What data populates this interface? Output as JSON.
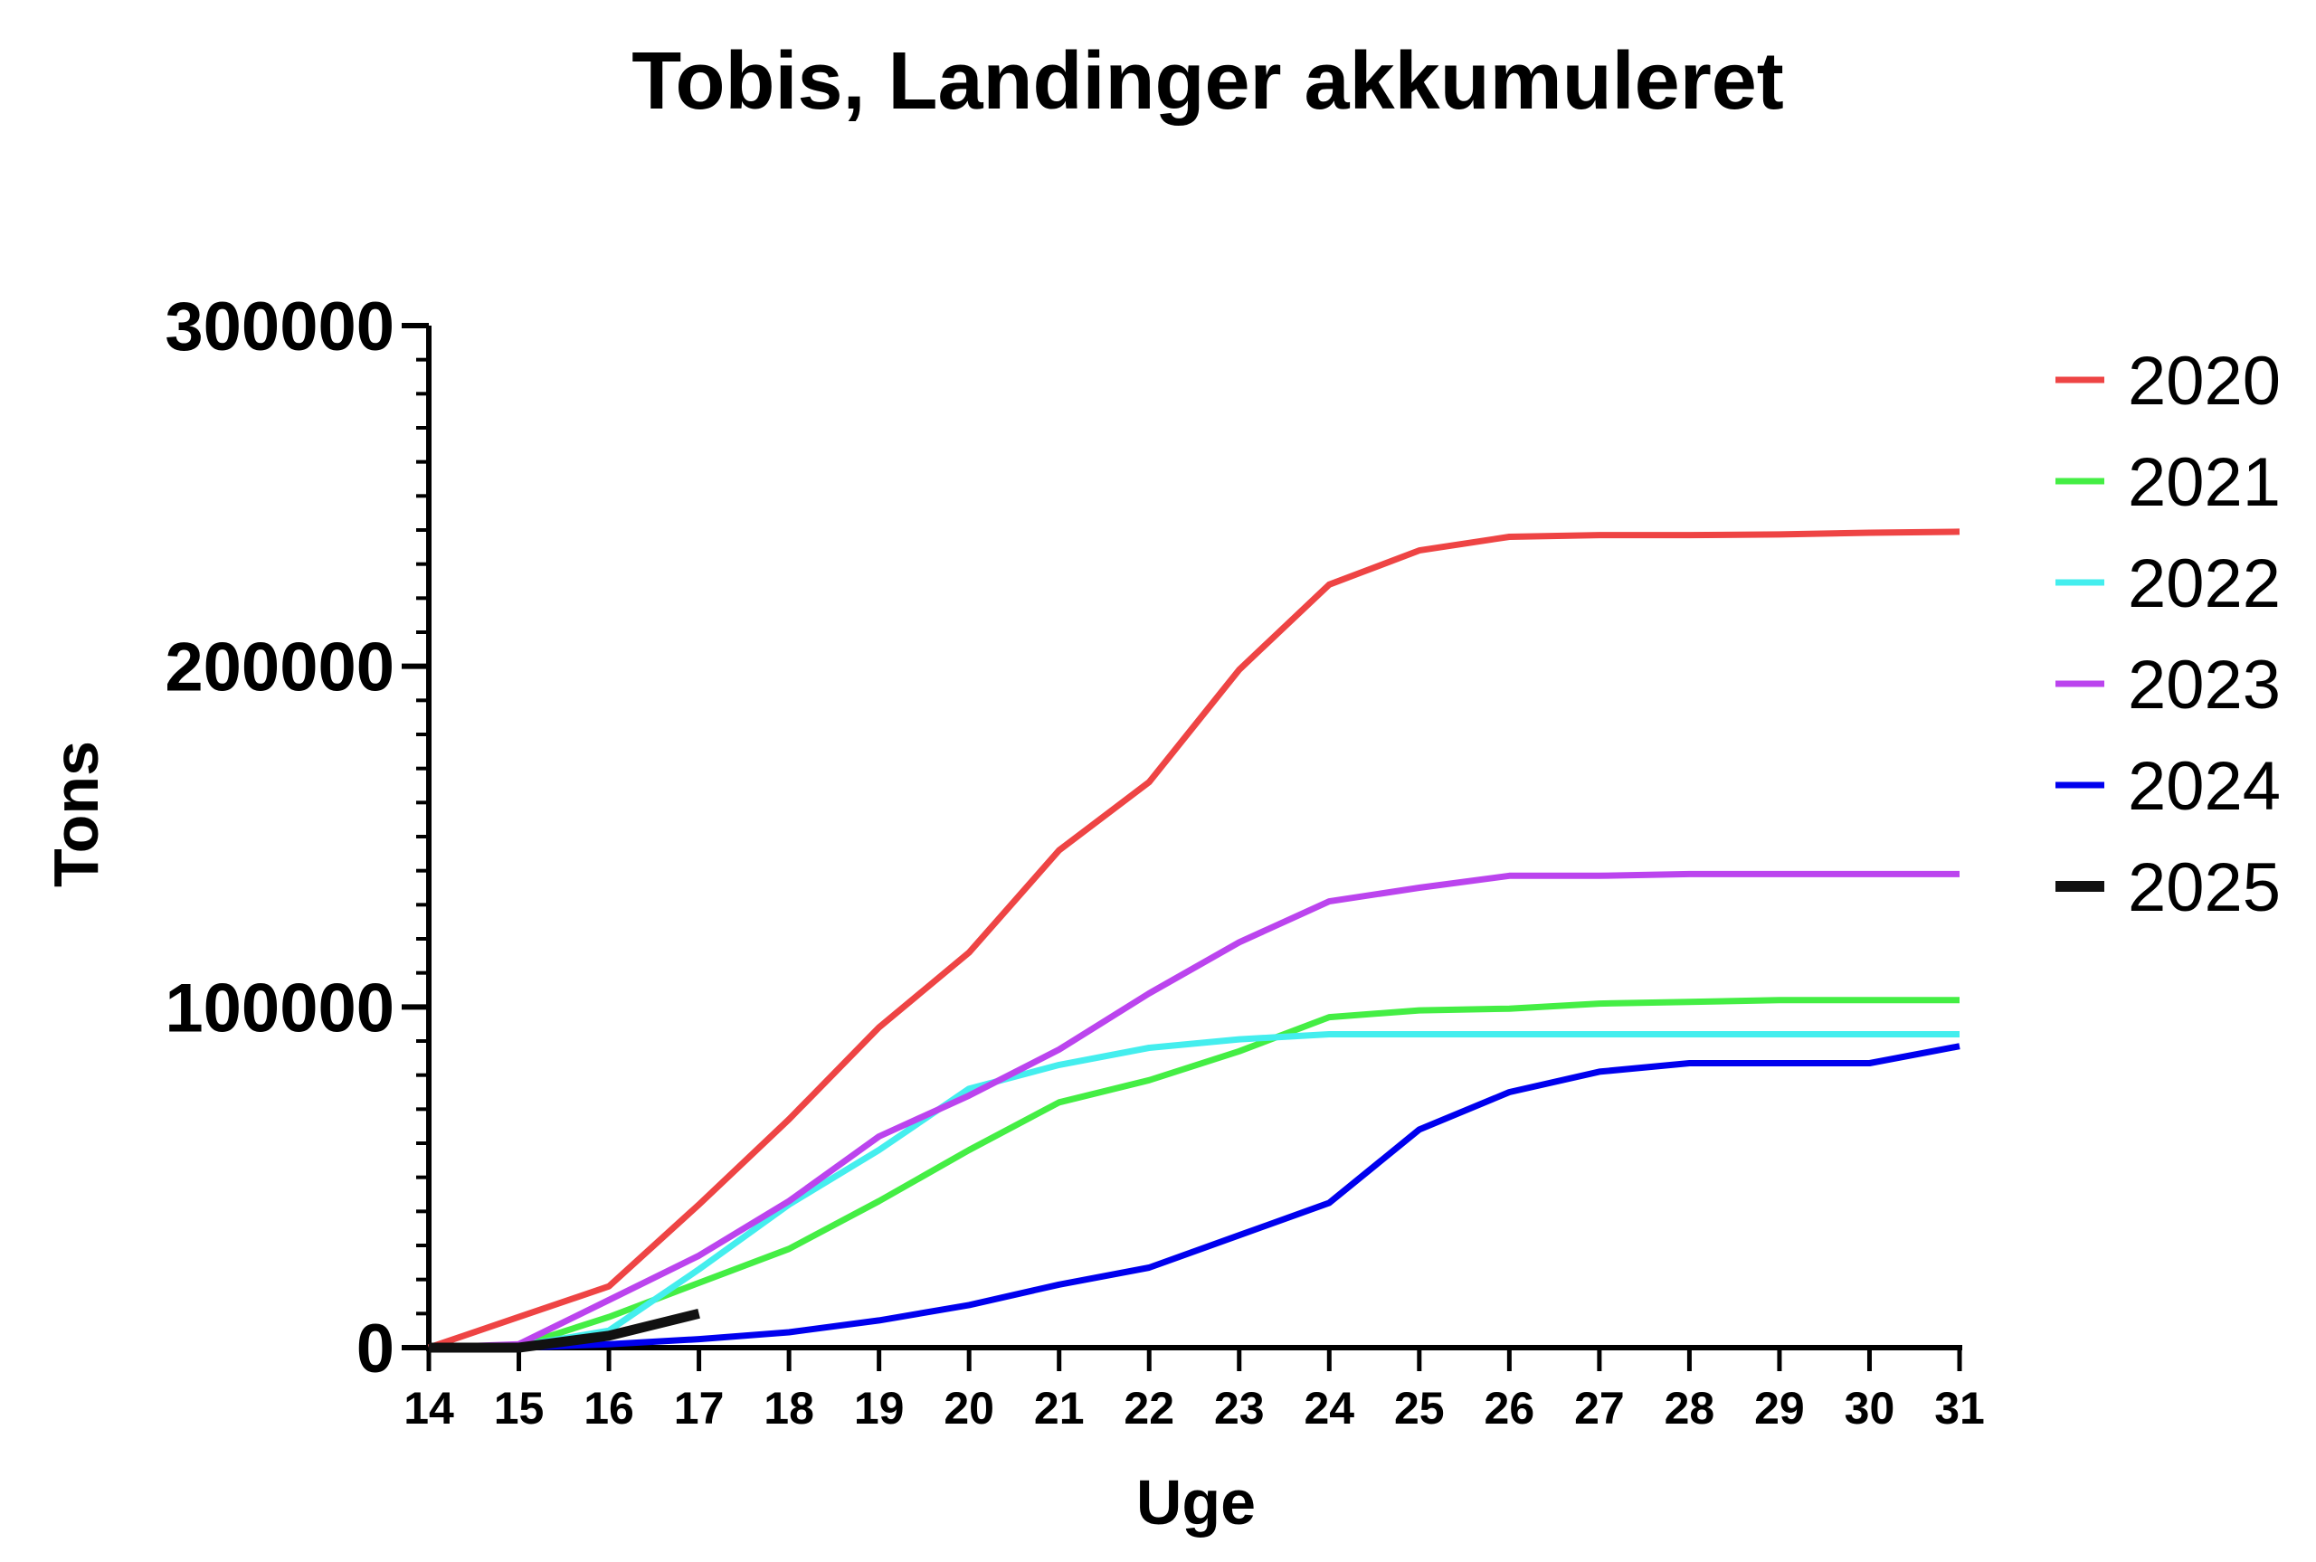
{
  "chart_data": {
    "type": "line",
    "title": "Tobis, Landinger akkumuleret",
    "xlabel": "Uge",
    "ylabel": "Tons",
    "xlim": [
      14,
      31
    ],
    "ylim": [
      0,
      300000
    ],
    "x_ticks": [
      "14",
      "15",
      "16",
      "17",
      "18",
      "19",
      "20",
      "21",
      "22",
      "23",
      "24",
      "25",
      "26",
      "27",
      "28",
      "29",
      "30",
      "31"
    ],
    "y_ticks": [
      "0",
      "100000",
      "200000",
      "300000"
    ],
    "y_tick_values": [
      0,
      100000,
      200000,
      300000
    ],
    "y_minor_step": 10000,
    "grid": false,
    "legend_position": "right",
    "series": [
      {
        "name": "2020",
        "color": "#ee4444",
        "x": [
          14,
          15,
          16,
          17,
          18,
          19,
          20,
          21,
          22,
          23,
          24,
          25,
          26,
          27,
          28,
          29,
          30,
          31
        ],
        "y": [
          0,
          9000,
          18000,
          42000,
          67000,
          94000,
          116000,
          146000,
          166000,
          199000,
          224000,
          234000,
          238000,
          238500,
          238500,
          238700,
          239200,
          239500
        ]
      },
      {
        "name": "2021",
        "color": "#44ee44",
        "x": [
          14,
          15,
          16,
          17,
          18,
          19,
          20,
          21,
          22,
          23,
          24,
          25,
          26,
          27,
          28,
          29,
          30,
          31
        ],
        "y": [
          0,
          500,
          9000,
          19000,
          29000,
          43000,
          58000,
          72000,
          78500,
          87000,
          97000,
          99000,
          99500,
          101000,
          101500,
          102000,
          102000,
          102000
        ]
      },
      {
        "name": "2022",
        "color": "#44eeee",
        "x": [
          14,
          15,
          16,
          17,
          18,
          19,
          20,
          21,
          22,
          23,
          24,
          25,
          26,
          27,
          28,
          29,
          30,
          31
        ],
        "y": [
          0,
          500,
          5000,
          23000,
          42000,
          58000,
          76000,
          83000,
          88000,
          90500,
          92000,
          92000,
          92000,
          92000,
          92000,
          92000,
          92000,
          92000
        ]
      },
      {
        "name": "2023",
        "color": "#bb44ee",
        "x": [
          14,
          15,
          16,
          17,
          18,
          19,
          20,
          21,
          22,
          23,
          24,
          25,
          26,
          27,
          28,
          29,
          30,
          31
        ],
        "y": [
          0,
          1000,
          14000,
          27000,
          43000,
          62000,
          74000,
          87500,
          104000,
          119000,
          131000,
          135000,
          138500,
          138500,
          139000,
          139000,
          139000,
          139000
        ]
      },
      {
        "name": "2024",
        "color": "#0000ee",
        "x": [
          14,
          15,
          16,
          17,
          18,
          19,
          20,
          21,
          22,
          23,
          24,
          25,
          26,
          27,
          28,
          29,
          30,
          31
        ],
        "y": [
          0,
          0,
          1000,
          2500,
          4500,
          8000,
          12500,
          18500,
          23500,
          33000,
          42500,
          64000,
          75000,
          81000,
          83500,
          83500,
          83500,
          88500
        ]
      },
      {
        "name": "2025",
        "color": "#111111",
        "x": [
          14,
          15,
          16,
          17
        ],
        "y": [
          0,
          0,
          3500,
          10000
        ]
      }
    ]
  }
}
